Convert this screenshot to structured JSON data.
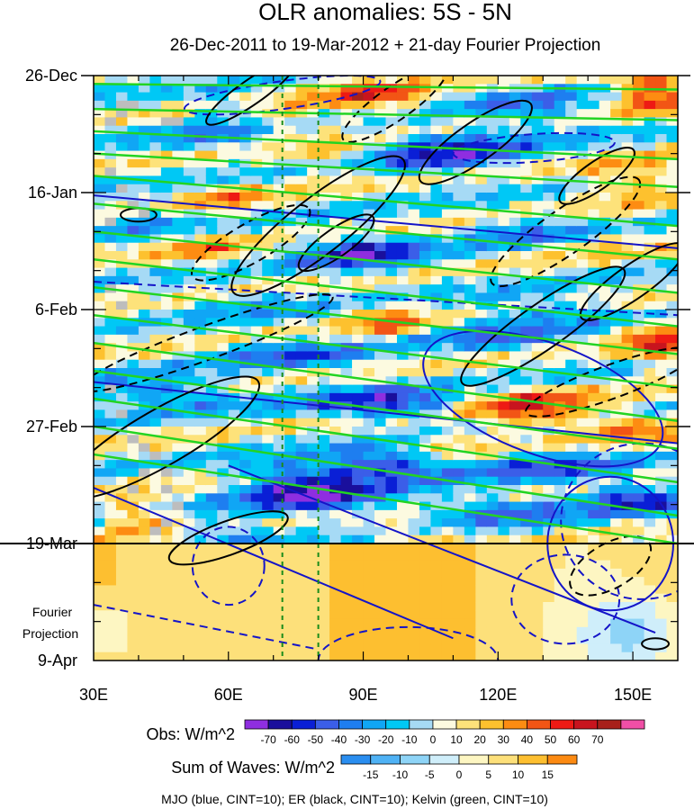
{
  "chart_data": {
    "type": "heatmap",
    "title": "OLR anomalies: 5S - 5N",
    "subtitle": "26-Dec-2011 to 19-Mar-2012 + 21-day Fourier Projection",
    "x_axis": {
      "range": [
        30,
        160
      ],
      "ticks": [
        30,
        60,
        90,
        120,
        150
      ],
      "tick_labels": [
        "30E",
        "60E",
        "90E",
        "120E",
        "150E"
      ]
    },
    "y_axis": {
      "range_days": [
        0,
        105
      ],
      "ticks_days": [
        0,
        21,
        42,
        63,
        84,
        105
      ],
      "tick_labels": [
        "26-Dec",
        "16-Jan",
        "6-Feb",
        "27-Feb",
        "19-Mar",
        "9-Apr"
      ],
      "projection_label_line1": "Fourier",
      "projection_label_line2": "Projection"
    },
    "projection_start_day": 84,
    "reference_longitudes": [
      72,
      80
    ],
    "obs_colorbar": {
      "label": "Obs: W/m^2",
      "levels": [
        -70,
        -60,
        -50,
        -40,
        -30,
        -20,
        -10,
        0,
        10,
        20,
        30,
        40,
        50,
        60,
        70
      ],
      "level_labels": [
        "-70",
        "-60",
        "-50",
        "-40",
        "-30",
        "-20",
        "-10",
        "0",
        "10",
        "20",
        "30",
        "40",
        "50",
        "60",
        "70"
      ],
      "colors": [
        "#8f2ee0",
        "#1a0f9c",
        "#0a1fd6",
        "#3b5ee8",
        "#1e7ef0",
        "#10a6f5",
        "#00c8f5",
        "#a6daf5",
        "#fcfae0",
        "#fde27a",
        "#fdc12e",
        "#fd8c12",
        "#f25515",
        "#ee1a14",
        "#c8141e",
        "#a8201a",
        "#f04fa6"
      ]
    },
    "waves_colorbar": {
      "label": "Sum of Waves: W/m^2",
      "levels": [
        -15,
        -10,
        -5,
        0,
        5,
        10,
        15
      ],
      "level_labels": [
        "-15",
        "-10",
        "-5",
        "0",
        "5",
        "10",
        "15"
      ],
      "colors": [
        "#2a8ef0",
        "#4fb2f5",
        "#8ed4f7",
        "#cfeefa",
        "#fdf6c2",
        "#fde07a",
        "#fdbf30",
        "#fc8a12"
      ]
    },
    "contour_legend": "MJO (blue, CINT=10); ER (black, CINT=10); Kelvin (green, CINT=10)",
    "colors": {
      "mjo": "#1414c8",
      "er": "#000000",
      "kelvin": "#22d422",
      "reference_line": "#1a8c1a",
      "missing": "#bdbdbd"
    }
  }
}
